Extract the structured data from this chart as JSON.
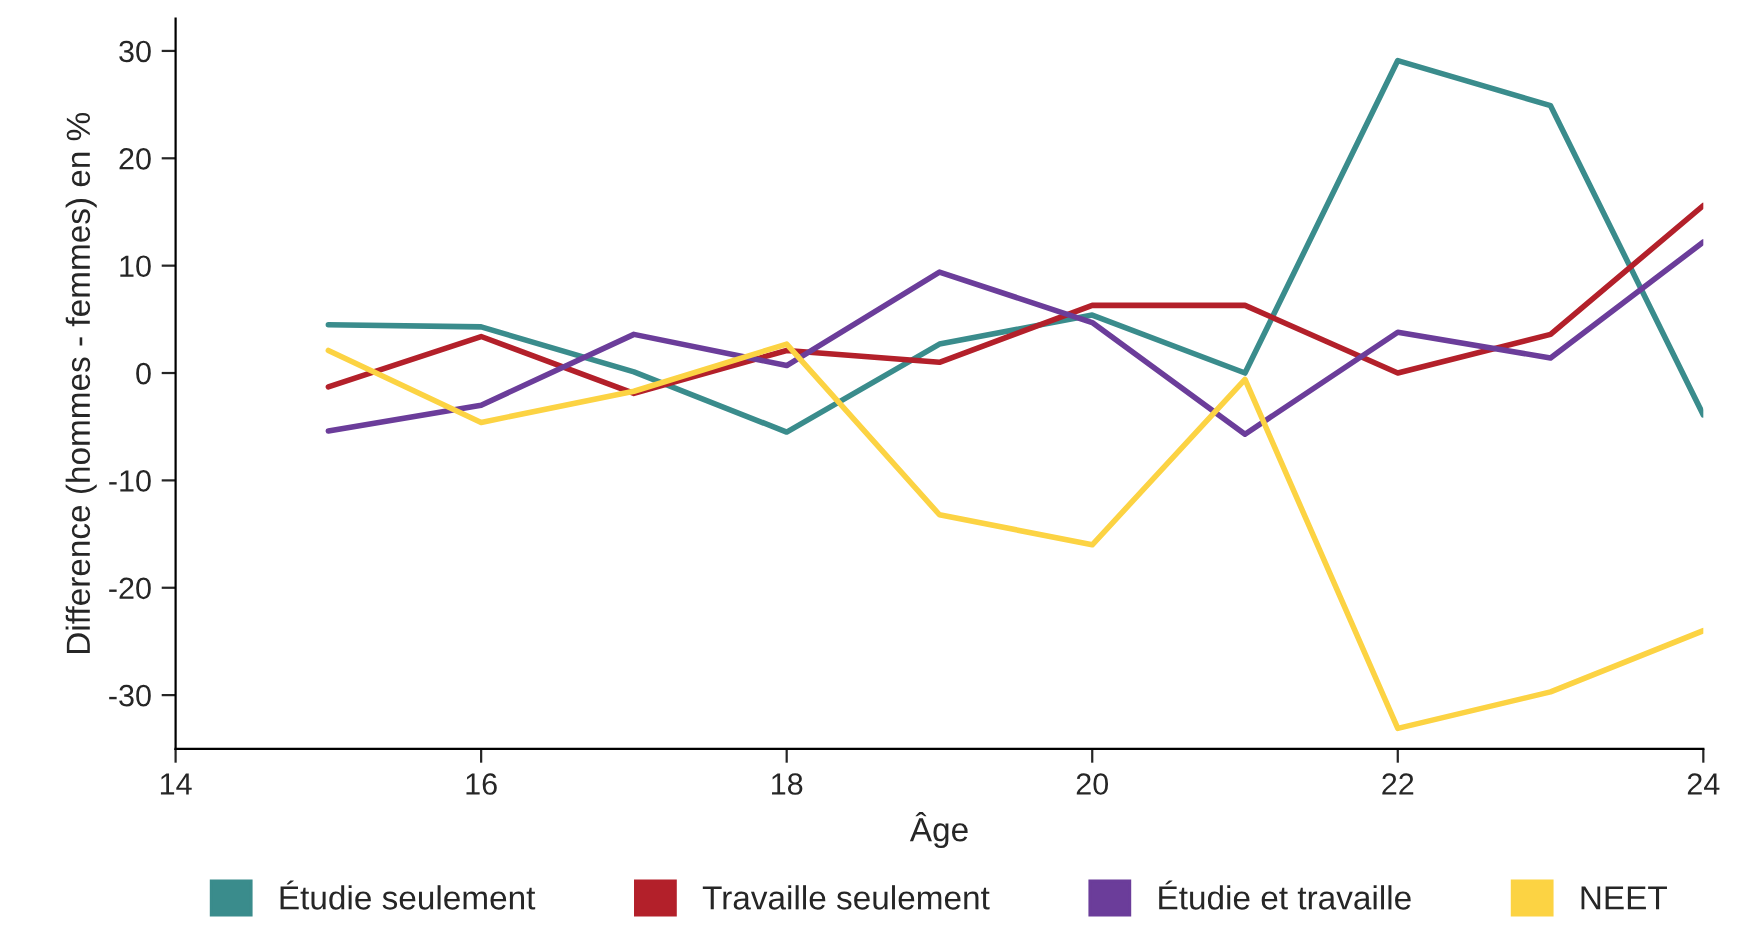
{
  "chart_data": {
    "type": "line",
    "xlabel": "Âge",
    "ylabel": "Difference (hommes - femmes) en %",
    "x": [
      15,
      16,
      17,
      18,
      19,
      20,
      21,
      22,
      23,
      24
    ],
    "series": [
      {
        "name": "Étudie seulement",
        "color": "#3a8c8c",
        "values": [
          4.5,
          4.3,
          0.1,
          -5.5,
          2.7,
          5.4,
          0,
          29.1,
          24.9,
          -3.9
        ]
      },
      {
        "name": "Travaille seulement",
        "color": "#b3202a",
        "values": [
          -1.3,
          3.4,
          -1.9,
          2.1,
          1.0,
          6.3,
          6.3,
          0,
          3.6,
          15.6
        ]
      },
      {
        "name": "Étudie et travaille",
        "color": "#6b3d9a",
        "values": [
          -5.4,
          -3.0,
          3.6,
          0.7,
          9.4,
          4.7,
          -5.7,
          3.8,
          1.4,
          12.2
        ]
      },
      {
        "name": "NEET",
        "color": "#fcd343",
        "values": [
          2.1,
          -4.6,
          -1.7,
          2.7,
          -13.2,
          -16.0,
          -0.6,
          -33.1,
          -29.7,
          -24.0
        ]
      }
    ],
    "xlim": [
      14,
      24
    ],
    "xticks": [
      14,
      16,
      18,
      20,
      22,
      24
    ],
    "ylim": [
      -35,
      33
    ],
    "yticks": [
      -30,
      -20,
      -10,
      0,
      10,
      20,
      30
    ],
    "grid": false,
    "legend": "bottom",
    "marker": "none",
    "line_style": "solid"
  }
}
